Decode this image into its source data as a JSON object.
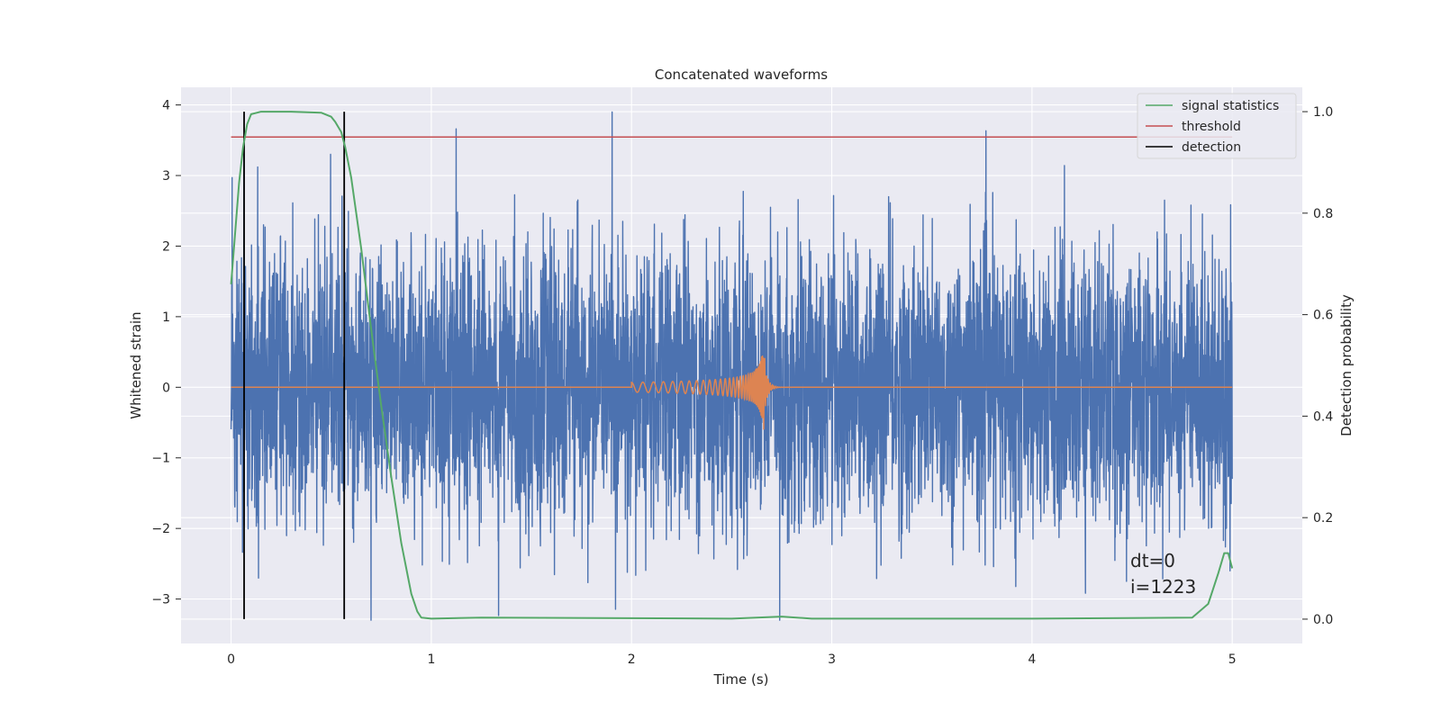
{
  "chart_data": {
    "type": "line",
    "title": "Concatenated waveforms",
    "xlabel": "Time (s)",
    "ylabel": "Whitened strain",
    "ylabel_right": "Detection probability",
    "xlim": [
      -0.25,
      5.35
    ],
    "ylim": [
      -3.63,
      4.25
    ],
    "ylim_right": [
      -0.048,
      1.048
    ],
    "x_ticks": [
      0,
      1,
      2,
      3,
      4,
      5
    ],
    "x_tick_labels": [
      "0",
      "1",
      "2",
      "3",
      "4",
      "5"
    ],
    "y_ticks": [
      -3,
      -2,
      -1,
      0,
      1,
      2,
      3,
      4
    ],
    "y_tick_labels": [
      "−3",
      "−2",
      "−1",
      "0",
      "1",
      "2",
      "3",
      "4"
    ],
    "y_right_ticks": [
      0,
      0.2,
      0.4,
      0.6,
      0.8,
      1.0
    ],
    "y_right_tick_labels": [
      "0.0",
      "0.2",
      "0.4",
      "0.6",
      "0.8",
      "1.0"
    ],
    "grid": true,
    "legend_position": "top-right",
    "colors": {
      "background": "#eaeaf2",
      "grid": "#ffffff",
      "noise": "#4c72b0",
      "waveform": "#dd8452",
      "signal_statistics": "#55a868",
      "threshold": "#c44e52",
      "detection": "#000000"
    },
    "series": [
      {
        "name": "signal statistics",
        "axis": "right",
        "x": [
          0,
          0.02,
          0.04,
          0.06,
          0.08,
          0.1,
          0.15,
          0.3,
          0.45,
          0.5,
          0.52,
          0.55,
          0.57,
          0.6,
          0.65,
          0.7,
          0.75,
          0.8,
          0.85,
          0.9,
          0.93,
          0.95,
          1.0,
          1.25,
          2.5,
          2.75,
          2.9,
          4.0,
          4.8,
          4.88,
          4.93,
          4.96,
          4.98,
          5.0
        ],
        "y": [
          0.66,
          0.76,
          0.86,
          0.93,
          0.975,
          0.995,
          1.0,
          1.0,
          0.998,
          0.99,
          0.98,
          0.96,
          0.93,
          0.87,
          0.73,
          0.57,
          0.42,
          0.28,
          0.15,
          0.05,
          0.015,
          0.003,
          0.001,
          0.003,
          0.001,
          0.005,
          0.001,
          0.001,
          0.003,
          0.03,
          0.09,
          0.13,
          0.13,
          0.1
        ]
      },
      {
        "name": "threshold",
        "axis": "right",
        "x": [
          0,
          5
        ],
        "y": [
          0.95,
          0.95
        ]
      },
      {
        "name": "detection",
        "axis": "right",
        "x": [
          0.065,
          0.565
        ],
        "y": [
          0,
          1.0
        ]
      }
    ],
    "injected_waveform": {
      "start_time": 2.0,
      "merger_time": 2.66,
      "peak_strain": 0.45,
      "trough_strain": -0.6
    },
    "noise": {
      "x_range": [
        0,
        5
      ],
      "typical_max": 3.0,
      "typical_min": -3.0,
      "extreme_max": 3.9,
      "extreme_min": -3.3
    },
    "annotations": [
      "dt=0",
      "i=1223"
    ]
  }
}
